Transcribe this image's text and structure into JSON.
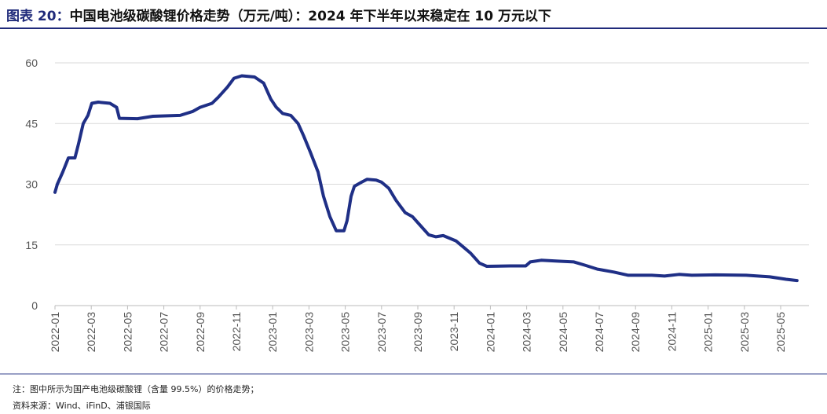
{
  "title_label": "图表 20：",
  "title_text": "中国电池级碳酸锂价格走势（万元/吨）：2024 年下半年以来稳定在 10 万元以下",
  "note": "注：图中所示为国产电池级碳酸锂（含量 99.5%）的价格走势；",
  "source": "资料来源：Wind、iFinD、浦银国际",
  "line_color": "#1f2f86",
  "chart_data": {
    "type": "line",
    "title": "中国电池级碳酸锂价格走势（万元/吨）",
    "xlabel": "",
    "ylabel": "万元/吨",
    "ylim": [
      0,
      60
    ],
    "yticks": [
      0,
      15,
      30,
      45,
      60
    ],
    "xticks": [
      "2022-01",
      "2022-03",
      "2022-05",
      "2022-07",
      "2022-09",
      "2022-11",
      "2023-01",
      "2023-03",
      "2023-05",
      "2023-07",
      "2023-09",
      "2023-11",
      "2024-01",
      "2024-03",
      "2024-05",
      "2024-07",
      "2024-09",
      "2024-11",
      "2025-01",
      "2025-03",
      "2025-05"
    ],
    "x_unit": "months since 2022-01",
    "series": [
      {
        "name": "电池级碳酸锂",
        "x": [
          0,
          0.13,
          0.43,
          0.74,
          1.1,
          1.3,
          1.56,
          1.82,
          2.03,
          2.38,
          3.03,
          3.4,
          3.55,
          4.55,
          5.4,
          6.9,
          7.6,
          8.0,
          8.66,
          9.0,
          9.5,
          9.87,
          10.3,
          11.0,
          11.5,
          11.9,
          12.2,
          12.55,
          13.0,
          13.4,
          13.7,
          14.07,
          14.5,
          14.8,
          15.15,
          15.5,
          15.93,
          16.1,
          16.32,
          16.5,
          16.9,
          17.2,
          17.7,
          18.0,
          18.4,
          18.8,
          19.3,
          19.7,
          20.1,
          20.6,
          21.0,
          21.4,
          22.1,
          22.5,
          22.9,
          23.4,
          23.8,
          25.1,
          25.95,
          26.2,
          26.8,
          27.7,
          28.6,
          29.2,
          29.9,
          30.8,
          31.6,
          32.9,
          33.6,
          34.4,
          35.1,
          36.4,
          38.1,
          39.4,
          40.3,
          40.9
        ],
        "values": [
          28,
          30,
          33,
          36.5,
          36.5,
          40,
          45,
          47,
          50,
          50.3,
          50,
          49,
          46.3,
          46.2,
          46.8,
          47,
          48,
          49,
          50,
          51.5,
          54,
          56.2,
          56.8,
          56.5,
          55,
          51,
          49,
          47.5,
          47,
          45,
          42,
          38,
          33,
          27,
          22,
          18.5,
          18.5,
          21,
          27,
          29.5,
          30.5,
          31.2,
          31,
          30.5,
          29,
          26,
          23,
          22,
          20,
          17.5,
          17,
          17.3,
          16,
          14.5,
          13,
          10.5,
          9.7,
          9.8,
          9.8,
          10.8,
          11.2,
          11,
          10.8,
          10,
          9,
          8.3,
          7.5,
          7.5,
          7.3,
          7.7,
          7.5,
          7.6,
          7.5,
          7.1,
          6.5,
          6.2
        ]
      }
    ]
  }
}
